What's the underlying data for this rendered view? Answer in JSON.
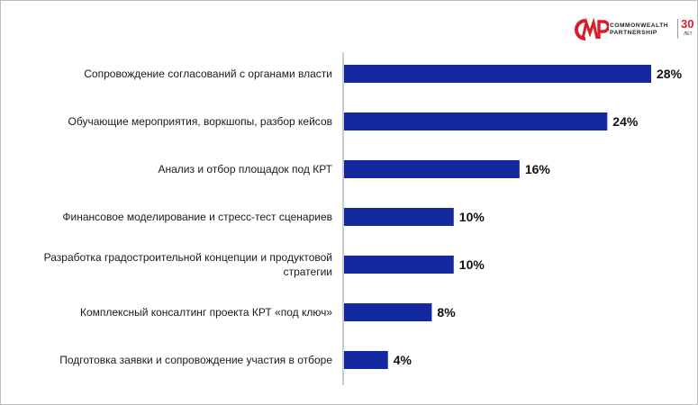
{
  "brand": {
    "line1": "COMMONWEALTH",
    "line2": "PARTNERSHIP",
    "anniversary": "30",
    "anniversary_unit": "ЛЕТ",
    "logo_lettering": "CMWP",
    "color": "#d81e2c"
  },
  "colors": {
    "bar": "#1428a0",
    "axis": "#999999",
    "label": "#1a1a1a",
    "value": "#111111"
  },
  "chart_data": {
    "type": "bar",
    "orientation": "horizontal",
    "title": "",
    "xlabel": "",
    "ylabel": "",
    "xlim": [
      0,
      28
    ],
    "grid": false,
    "legend": "none",
    "categories": [
      [
        "Сопровождение согласований с органами власти"
      ],
      [
        "Обучающие мероприятия, воркшопы, разбор кейсов"
      ],
      [
        "Анализ и отбор площадок под КРТ"
      ],
      [
        "Финансовое моделирование и стресс-тест сценариев"
      ],
      [
        "Разработка градостроительной концепции и продуктовой",
        "стратегии"
      ],
      [
        "Комплексный консалтинг проекта КРТ «под ключ»"
      ],
      [
        "Подготовка заявки и сопровождение участия в отборе"
      ]
    ],
    "values": [
      28,
      24,
      16,
      10,
      10,
      8,
      4
    ],
    "value_labels": [
      "28%",
      "24%",
      "16%",
      "10%",
      "10%",
      "8%",
      "4%"
    ]
  }
}
